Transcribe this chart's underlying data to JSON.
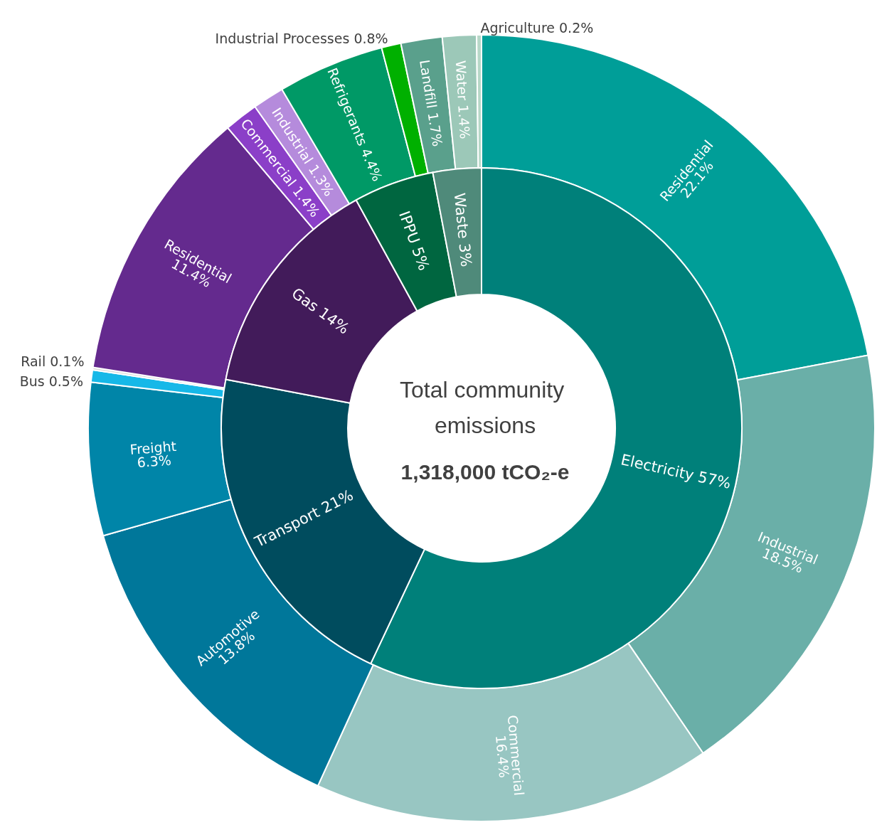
{
  "chart_data": [
    {
      "type": "donut",
      "title": "Total community emissions",
      "subtitle": "1,318,000 tCO₂-e",
      "categories": [
        "Electricity",
        "Transport",
        "Gas",
        "IPPU",
        "Waste"
      ],
      "values": [
        57,
        21,
        14,
        5,
        3
      ],
      "value_labels": [
        "57%",
        "21%",
        "14%",
        "5%",
        "3%"
      ],
      "colors": [
        "#00807a",
        "#004c5e",
        "#421b5a",
        "#006640",
        "#4f8a7a"
      ]
    },
    {
      "type": "donut",
      "categories": [
        "Residential",
        "Industrial",
        "Commercial",
        "Automotive",
        "Freight",
        "Bus",
        "Rail",
        "Residential",
        "Commercial",
        "Industrial",
        "Refrigerants",
        "Industrial Processes",
        "Landfill",
        "Water",
        "Agriculture"
      ],
      "values": [
        22.1,
        18.5,
        16.4,
        13.8,
        6.3,
        0.5,
        0.1,
        11.4,
        1.4,
        1.3,
        4.4,
        0.8,
        1.7,
        1.4,
        0.2
      ],
      "value_labels": [
        "22.1%",
        "18.5%",
        "16.4%",
        "13.8%",
        "6.3%",
        "0.5%",
        "0.1%",
        "11.4%",
        "1.4%",
        "1.3%",
        "4.4%",
        "0.8%",
        "1.7%",
        "1.4%",
        "0.2%"
      ],
      "colors": [
        "#009e98",
        "#6aafa8",
        "#98c6c2",
        "#00779a",
        "#0085a8",
        "#16b8e8",
        "#d8d8d8",
        "#642a8e",
        "#8b3fc8",
        "#b58bdc",
        "#009966",
        "#00b000",
        "#5aa08c",
        "#9cc8b8",
        "#b8d8c8"
      ]
    }
  ]
}
